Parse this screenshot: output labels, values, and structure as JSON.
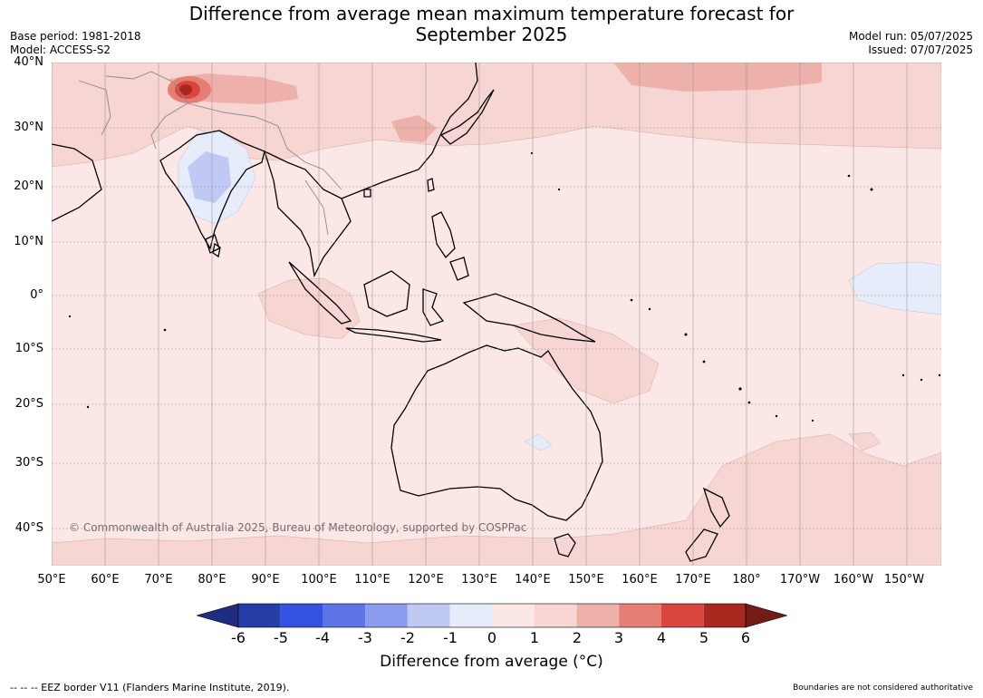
{
  "header": {
    "title_line1": "Difference from average mean maximum temperature forecast for",
    "title_line2": "September 2025",
    "base_period": "Base period: 1981-2018",
    "model": "Model: ACCESS-S2",
    "model_run": "Model run: 05/07/2025",
    "issued": "Issued: 07/07/2025"
  },
  "map": {
    "copyright": "© Commonwealth of Australia 2025, Bureau of Meteorology, supported by COSPPac",
    "lat_labels": [
      "40°N",
      "30°N",
      "20°N",
      "10°N",
      "0°",
      "10°S",
      "20°S",
      "30°S",
      "40°S"
    ],
    "lon_labels": [
      "50°E",
      "60°E",
      "70°E",
      "80°E",
      "90°E",
      "100°E",
      "110°E",
      "120°E",
      "130°E",
      "140°E",
      "150°E",
      "160°E",
      "170°E",
      "180°",
      "170°W",
      "160°W",
      "150°W"
    ],
    "colors": {
      "ocean_background": "#fbe8e6",
      "anomaly_1_2": "#f6d5d2",
      "anomaly_2_3": "#eeb0ab",
      "anomaly_3_4": "#e57e75",
      "anomaly_4_5": "#d9463d",
      "anomaly_5_6": "#a8281f",
      "anomaly_minus1_0": "#e7ecfb",
      "anomaly_minus2_minus1": "#c0c9f3"
    }
  },
  "legend": {
    "label": "Difference from average (°C)",
    "ticks": [
      "-6",
      "-5",
      "-4",
      "-3",
      "-2",
      "-1",
      "0",
      "1",
      "2",
      "3",
      "4",
      "5",
      "6"
    ],
    "colors": [
      "#1e2d80",
      "#263ea8",
      "#3352e0",
      "#5c74e6",
      "#8b9bed",
      "#c0c8f4",
      "#e7ecfb",
      "#fbe8e6",
      "#f6d5d2",
      "#eeb0ab",
      "#e57e75",
      "#d9463d",
      "#a8281f",
      "#731b17"
    ]
  },
  "footer": {
    "eez_note": "--  --  -- EEZ border V11 (Flanders Marine Institute, 2019).",
    "boundaries_note": "Boundaries are not considered authoritative"
  }
}
